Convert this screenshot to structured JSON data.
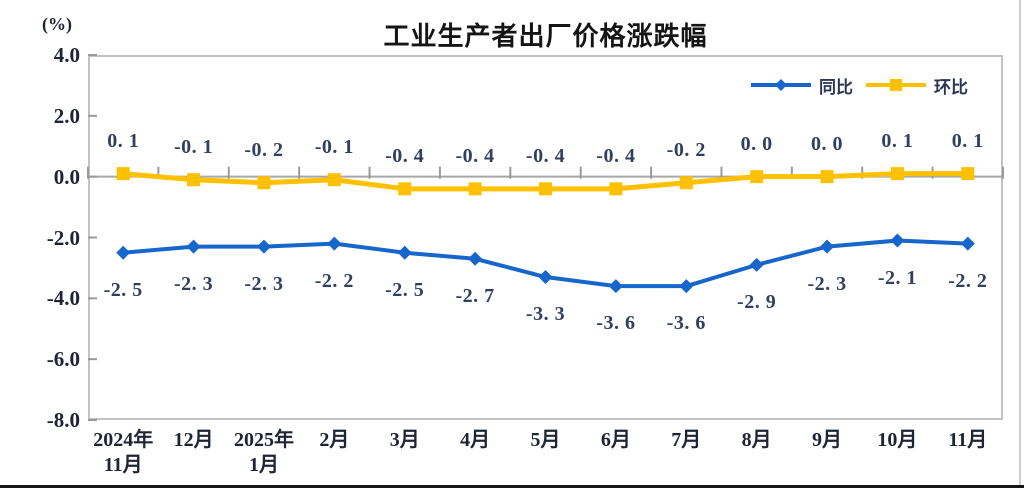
{
  "header": {
    "title": "工业生产者出厂价格涨跌幅",
    "axis_unit": "(%)"
  },
  "legend": {
    "items": [
      {
        "label": "同比",
        "color": "#1666CC",
        "marker": "diamond"
      },
      {
        "label": "环比",
        "color": "#FFC000",
        "marker": "square"
      }
    ]
  },
  "colors": {
    "tongbi_blue": "#1666CC",
    "huanbi_yellow": "#FFC000",
    "data_label": "#32405f",
    "axis_text": "#1d2433",
    "plot_border": "#c3c3c3",
    "zero_axis": "#a8a8a8"
  },
  "chart_data": {
    "type": "line",
    "title": "工业生产者出厂价格涨跌幅",
    "unit": "(%)",
    "categories": [
      "2024年11月",
      "12月",
      "2025年1月",
      "2月",
      "3月",
      "4月",
      "5月",
      "6月",
      "7月",
      "8月",
      "9月",
      "10月",
      "11月"
    ],
    "x_tick_lines": [
      [
        "2024年",
        "11月"
      ],
      [
        "12月"
      ],
      [
        "2025年",
        "1月"
      ],
      [
        "2月"
      ],
      [
        "3月"
      ],
      [
        "4月"
      ],
      [
        "5月"
      ],
      [
        "6月"
      ],
      [
        "7月"
      ],
      [
        "8月"
      ],
      [
        "9月"
      ],
      [
        "10月"
      ],
      [
        "11月"
      ]
    ],
    "series": [
      {
        "name": "同比",
        "color": "#1666CC",
        "marker": "diamond",
        "label_position": "below",
        "values": [
          -2.5,
          -2.3,
          -2.3,
          -2.2,
          -2.5,
          -2.7,
          -3.3,
          -3.6,
          -3.6,
          -2.9,
          -2.3,
          -2.1,
          -2.2
        ],
        "labels": [
          "-2. 5",
          "-2. 3",
          "-2. 3",
          "-2. 2",
          "-2. 5",
          "-2. 7",
          "-3. 3",
          "-3. 6",
          "-3. 6",
          "-2. 9",
          "-2. 3",
          "-2. 1",
          "-2. 2"
        ]
      },
      {
        "name": "环比",
        "color": "#FFC000",
        "marker": "square",
        "label_position": "above",
        "values": [
          0.1,
          -0.1,
          -0.2,
          -0.1,
          -0.4,
          -0.4,
          -0.4,
          -0.4,
          -0.2,
          0.0,
          0.0,
          0.1,
          0.1
        ],
        "labels": [
          "0. 1",
          "-0. 1",
          "-0. 2",
          "-0. 1",
          "-0. 4",
          "-0. 4",
          "-0. 4",
          "-0. 4",
          "-0. 2",
          "0. 0",
          "0. 0",
          "0. 1",
          "0. 1"
        ]
      }
    ],
    "y_ticks": [
      4.0,
      2.0,
      0.0,
      -2.0,
      -4.0,
      -6.0,
      -8.0
    ],
    "y_tick_labels": [
      "4.0",
      "2.0",
      "0.0",
      "-2.0",
      "-4.0",
      "-6.0",
      "-8.0"
    ],
    "ylim": [
      -8.0,
      4.0
    ],
    "grid": false,
    "legend_position": "top-right-inside"
  }
}
